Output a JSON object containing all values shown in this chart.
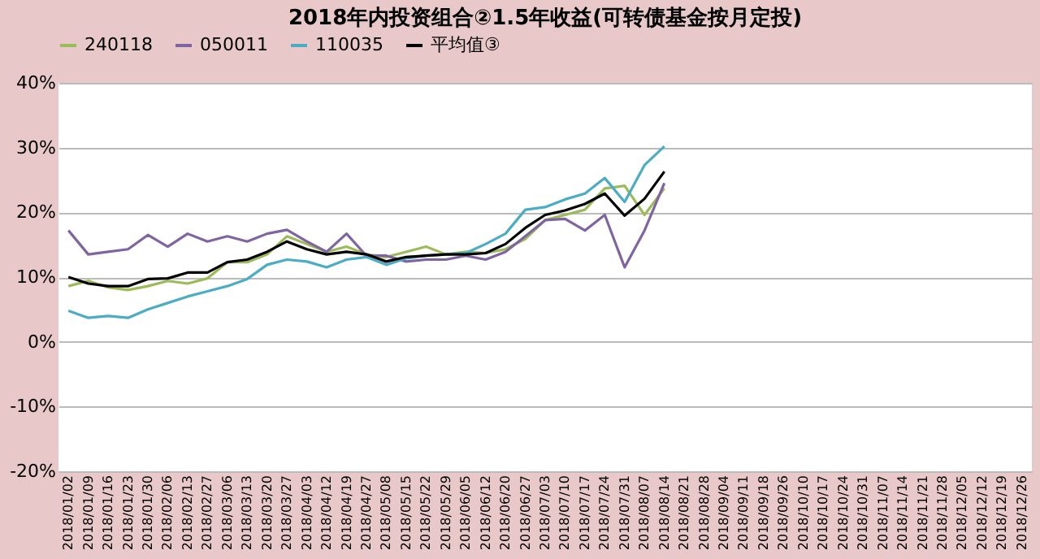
{
  "chart_data": {
    "type": "line",
    "title": "2018年内投资组合②1.5年收益(可转债基金按月定投)",
    "categories": [
      "2018/01/02",
      "2018/01/09",
      "2018/01/16",
      "2018/01/23",
      "2018/01/30",
      "2018/02/06",
      "2018/02/13",
      "2018/02/27",
      "2018/03/06",
      "2018/03/13",
      "2018/03/20",
      "2018/03/27",
      "2018/04/03",
      "2018/04/12",
      "2018/04/19",
      "2018/04/27",
      "2018/05/08",
      "2018/05/15",
      "2018/05/22",
      "2018/05/29",
      "2018/06/05",
      "2018/06/12",
      "2018/06/20",
      "2018/06/27",
      "2018/07/03",
      "2018/07/10",
      "2018/07/17",
      "2018/07/24",
      "2018/07/31",
      "2018/08/07",
      "2018/08/14",
      "2018/08/21",
      "2018/08/28",
      "2018/09/04",
      "2018/09/11",
      "2018/09/18",
      "2018/09/26",
      "2018/10/10",
      "2018/10/17",
      "2018/10/24",
      "2018/10/31",
      "2018/11/07",
      "2018/11/14",
      "2018/11/21",
      "2018/11/28",
      "2018/12/05",
      "2018/12/12",
      "2018/12/19",
      "2018/12/26"
    ],
    "series": [
      {
        "name": "240118",
        "color": "#9bbb59",
        "values": [
          8.6,
          9.4,
          8.4,
          8.0,
          8.6,
          9.4,
          9.0,
          9.8,
          12.3,
          12.3,
          13.5,
          16.3,
          15.1,
          13.9,
          14.7,
          13.5,
          13.1,
          13.9,
          14.7,
          13.5,
          13.9,
          13.7,
          14.3,
          15.9,
          18.8,
          19.6,
          20.4,
          23.7,
          24.1,
          19.6,
          23.7,
          null,
          null,
          null,
          null,
          null,
          null,
          null,
          null,
          null,
          null,
          null,
          null,
          null,
          null,
          null,
          null,
          null,
          null
        ]
      },
      {
        "name": "050011",
        "color": "#8064a2",
        "values": [
          17.2,
          13.5,
          13.9,
          14.3,
          16.5,
          14.7,
          16.7,
          15.5,
          16.3,
          15.5,
          16.7,
          17.3,
          15.5,
          13.9,
          16.7,
          13.3,
          13.3,
          12.4,
          12.7,
          12.7,
          13.3,
          12.7,
          13.9,
          16.3,
          18.8,
          19.0,
          17.2,
          19.6,
          11.5,
          17.2,
          24.5,
          null,
          null,
          null,
          null,
          null,
          null,
          null,
          null,
          null,
          null,
          null,
          null,
          null,
          null,
          null,
          null,
          null,
          null
        ]
      },
      {
        "name": "110035",
        "color": "#4bacc6",
        "values": [
          4.8,
          3.7,
          4.0,
          3.7,
          5.0,
          6.0,
          7.0,
          7.8,
          8.6,
          9.7,
          11.9,
          12.7,
          12.4,
          11.5,
          12.7,
          13.1,
          11.9,
          12.9,
          13.3,
          13.5,
          13.7,
          15.1,
          16.7,
          20.4,
          20.8,
          22.0,
          22.9,
          25.3,
          21.6,
          27.3,
          30.2,
          null,
          null,
          null,
          null,
          null,
          null,
          null,
          null,
          null,
          null,
          null,
          null,
          null,
          null,
          null,
          null,
          null,
          null
        ]
      },
      {
        "name": "平均值③",
        "color": "#000000",
        "values": [
          10.0,
          9.0,
          8.6,
          8.6,
          9.7,
          9.8,
          10.7,
          10.7,
          12.3,
          12.7,
          13.9,
          15.5,
          14.3,
          13.5,
          13.9,
          13.5,
          12.4,
          13.1,
          13.3,
          13.5,
          13.5,
          13.7,
          15.1,
          17.6,
          19.6,
          20.3,
          21.3,
          22.9,
          19.5,
          22.1,
          26.3,
          null,
          null,
          null,
          null,
          null,
          null,
          null,
          null,
          null,
          null,
          null,
          null,
          null,
          null,
          null,
          null,
          null,
          null
        ]
      }
    ],
    "ylim": [
      -20,
      40
    ],
    "yticks": [
      {
        "value": -20,
        "label": "-20%"
      },
      {
        "value": -10,
        "label": "-10%"
      },
      {
        "value": 0,
        "label": "0%"
      },
      {
        "value": 10,
        "label": "10%"
      },
      {
        "value": 20,
        "label": "20%"
      },
      {
        "value": 30,
        "label": "30%"
      },
      {
        "value": 40,
        "label": "40%"
      }
    ],
    "grid": "y",
    "legend": "top",
    "marker": "none",
    "line_style": "solid"
  }
}
